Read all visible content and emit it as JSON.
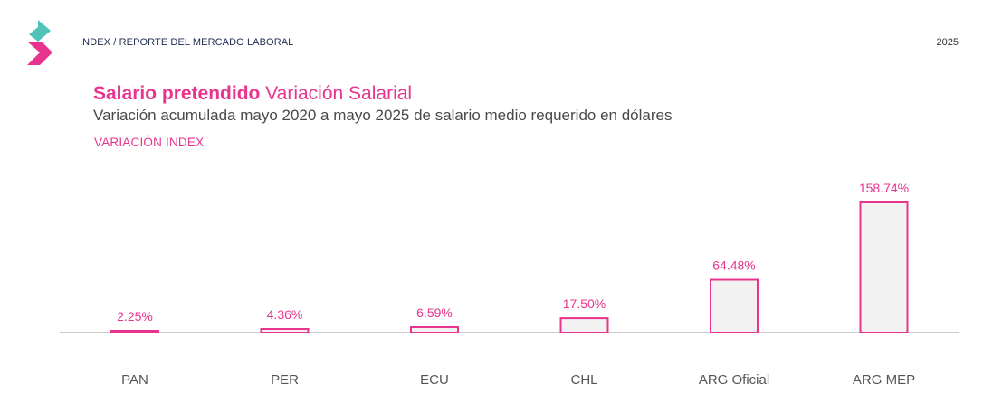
{
  "header": {
    "breadcrumb": "INDEX / REPORTE DEL MERCADO LABORAL",
    "year": "2025"
  },
  "title": {
    "bold": "Salario pretendido",
    "light": "Variación Salarial"
  },
  "subtitle": "Variación acumulada mayo 2020 a mayo 2025 de salario medio requerido en dólares",
  "colors": {
    "accent": "#e8348e",
    "teal": "#4fc3b8",
    "bar_fill": "#f2f2f2",
    "axis": "#cccccc"
  },
  "chart_data": {
    "type": "bar",
    "categories": [
      "PAN",
      "PER",
      "ECU",
      "CHL",
      "ARG Oficial",
      "ARG MEP"
    ],
    "series": [
      {
        "name": "VARIACIÓN INDEX",
        "values": [
          2.25,
          4.36,
          6.59,
          17.5,
          64.48,
          158.74
        ],
        "labels": [
          "2.25%",
          "4.36%",
          "6.59%",
          "17.50%",
          "64.48%",
          "158.74%"
        ]
      }
    ],
    "ylim": [
      0,
      160
    ],
    "grid": false,
    "title": "",
    "xlabel": "",
    "ylabel": ""
  }
}
